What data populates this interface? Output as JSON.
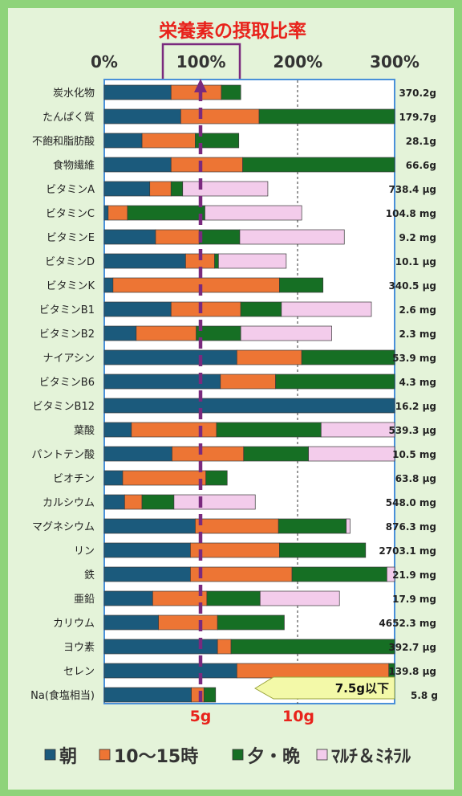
{
  "chart_data": {
    "type": "bar",
    "stacked": true,
    "orientation": "horizontal",
    "title": "栄養素の摂取比率",
    "x_ticks": [
      "0%",
      "100%",
      "200%",
      "300%"
    ],
    "xlim": [
      0,
      300
    ],
    "categories": [
      "炭水化物",
      "たんぱく質",
      "不飽和脂肪酸",
      "食物繊維",
      "ビタミンA",
      "ビタミンC",
      "ビタミンE",
      "ビタミンD",
      "ビタミンK",
      "ビタミンB1",
      "ビタミンB2",
      "ナイアシン",
      "ビタミンB6",
      "ビタミンB12",
      "葉酸",
      "パントテン酸",
      "ビオチン",
      "カルシウム",
      "マグネシウム",
      "リン",
      "鉄",
      "亜鉛",
      "カリウム",
      "ヨウ素",
      "セレン",
      "Na(食塩相当)"
    ],
    "amounts": [
      "370.2g",
      "179.7g",
      "28.1g",
      "66.6g",
      "738.4 μg",
      "104.8 mg",
      "9.2 mg",
      "10.1 μg",
      "340.5 μg",
      "2.6 mg",
      "2.3 mg",
      "53.9 mg",
      "4.3 mg",
      "16.2 μg",
      "539.3 μg",
      "10.5 mg",
      "63.8 μg",
      "548.0 mg",
      "876.3 mg",
      "2703.1 mg",
      "21.9 mg",
      "17.9 mg",
      "4652.3 mg",
      "392.7 μg",
      "139.8 μg",
      "5.8 g"
    ],
    "series": [
      {
        "name": "朝",
        "color": "#1b5a7c",
        "values": [
          69,
          79,
          39,
          69,
          47,
          4,
          53,
          84,
          9,
          69,
          33,
          137,
          120,
          300,
          28,
          70,
          19,
          21,
          94,
          89,
          89,
          50,
          56,
          117,
          137,
          90
        ]
      },
      {
        "name": "10～15時",
        "color": "#ed7534",
        "values": [
          52,
          81,
          55,
          74,
          22,
          20,
          45,
          30,
          172,
          72,
          62,
          67,
          57,
          0,
          88,
          74,
          86,
          18,
          86,
          92,
          105,
          56,
          61,
          14,
          157,
          13
        ]
      },
      {
        "name": "夕・晩",
        "color": "#166f24",
        "values": [
          20,
          140,
          45,
          157,
          12,
          80,
          42,
          4,
          45,
          42,
          46,
          96,
          123,
          0,
          108,
          67,
          22,
          33,
          70,
          89,
          98,
          55,
          69,
          184,
          6,
          12
        ]
      },
      {
        "name": "ﾏﾙﾁ＆ﾐﾈﾗﾙ",
        "color": "#f3cceb",
        "values": [
          0,
          0,
          0,
          0,
          88,
          100,
          108,
          70,
          0,
          93,
          94,
          0,
          0,
          0,
          76,
          91,
          0,
          84,
          4,
          0,
          8,
          82,
          0,
          0,
          0,
          0
        ]
      }
    ],
    "reference_line": {
      "value": 100
    },
    "na_axis": {
      "ticks": [
        "5g",
        "10g"
      ],
      "values": [
        5,
        10
      ],
      "target_label": "7.5g以下"
    },
    "legend": {
      "position": "bottom"
    }
  }
}
